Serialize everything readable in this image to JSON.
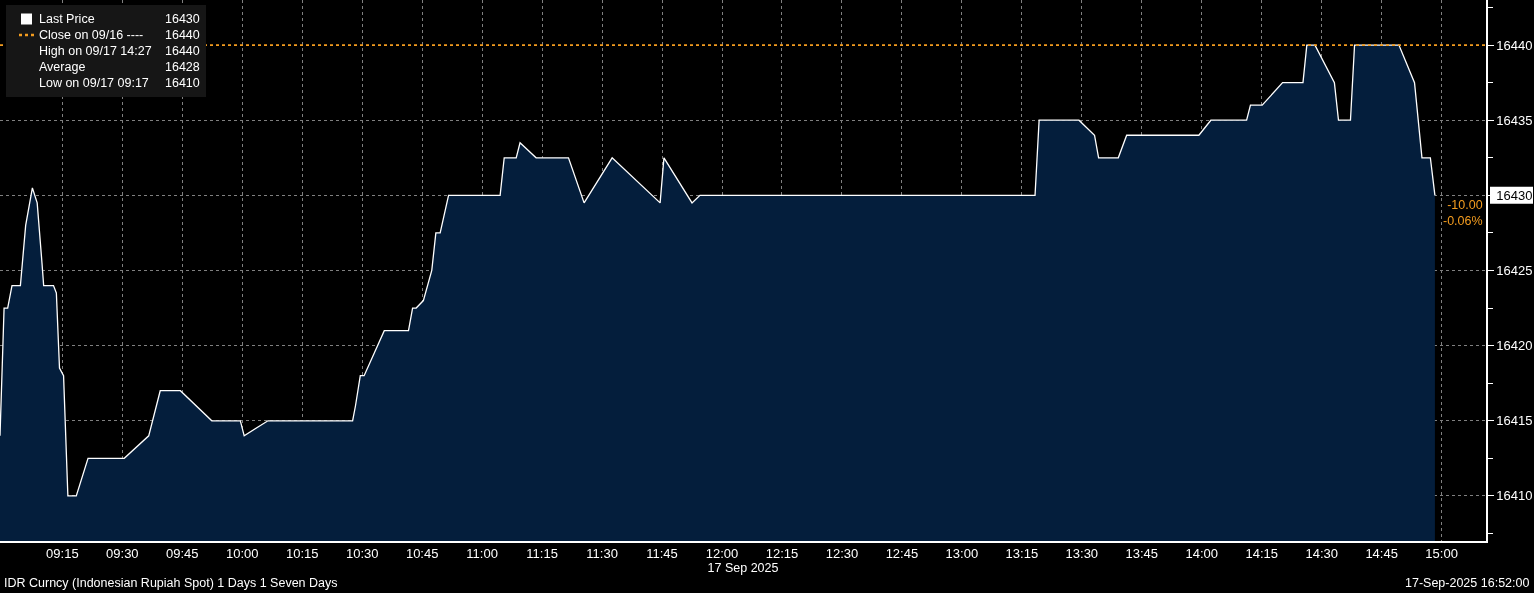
{
  "chart_data": {
    "type": "area",
    "xlabel": "17 Sep 2025",
    "series": [
      {
        "name": "Last Price",
        "color": "#ffffff",
        "x": [
          8.99,
          9.007,
          9.022,
          9.04,
          9.075,
          9.097,
          9.125,
          9.145,
          9.165,
          9.172,
          9.213,
          9.225,
          9.238,
          9.255,
          9.273,
          9.308,
          9.357,
          9.508,
          9.61,
          9.658,
          9.742,
          9.873,
          9.992,
          10.008,
          10.107,
          10.46,
          10.472,
          10.492,
          10.508,
          10.592,
          10.693,
          10.71,
          10.725,
          10.755,
          10.79,
          10.807,
          10.825,
          10.86,
          11.075,
          11.092,
          11.142,
          11.158,
          11.225,
          11.36,
          11.425,
          11.542,
          11.742,
          11.758,
          11.875,
          11.908,
          13.305,
          13.322,
          13.488,
          13.553,
          13.57,
          13.652,
          13.687,
          13.988,
          14.038,
          14.187,
          14.203,
          14.252,
          14.337,
          14.422,
          14.438,
          14.472,
          14.553,
          14.57,
          14.62,
          14.637,
          14.822,
          14.887,
          14.918,
          14.953,
          14.972
        ],
        "values": [
          16414,
          16422.5,
          16422.5,
          16424,
          16424,
          16428,
          16430.5,
          16429.5,
          16425.5,
          16424,
          16424,
          16423.5,
          16418.5,
          16418,
          16410,
          16410,
          16412.5,
          16412.5,
          16414,
          16417,
          16417,
          16415,
          16415,
          16414,
          16415,
          16415,
          16416,
          16418,
          16418,
          16421,
          16421,
          16422.5,
          16422.5,
          16423,
          16425,
          16427.5,
          16427.5,
          16430,
          16430,
          16432.5,
          16432.5,
          16433.5,
          16432.5,
          16432.5,
          16429.5,
          16432.5,
          16429.5,
          16432.5,
          16429.5,
          16430,
          16430,
          16435,
          16435,
          16434,
          16432.5,
          16432.5,
          16434,
          16434,
          16435,
          16435,
          16436,
          16436,
          16437.5,
          16437.5,
          16440,
          16440,
          16437.5,
          16435,
          16435,
          16440,
          16440,
          16437.5,
          16432.5,
          16432.5,
          16430
        ]
      }
    ],
    "xlim": [
      8.99,
      15.185
    ],
    "xticks": [
      {
        "value": 9.25,
        "label": "09:15"
      },
      {
        "value": 9.5,
        "label": "09:30"
      },
      {
        "value": 9.75,
        "label": "09:45"
      },
      {
        "value": 10.0,
        "label": "10:00"
      },
      {
        "value": 10.25,
        "label": "10:15"
      },
      {
        "value": 10.5,
        "label": "10:30"
      },
      {
        "value": 10.75,
        "label": "10:45"
      },
      {
        "value": 11.0,
        "label": "11:00"
      },
      {
        "value": 11.25,
        "label": "11:15"
      },
      {
        "value": 11.5,
        "label": "11:30"
      },
      {
        "value": 11.75,
        "label": "11:45"
      },
      {
        "value": 12.0,
        "label": "12:00"
      },
      {
        "value": 12.25,
        "label": "12:15"
      },
      {
        "value": 12.5,
        "label": "12:30"
      },
      {
        "value": 12.75,
        "label": "12:45"
      },
      {
        "value": 13.0,
        "label": "13:00"
      },
      {
        "value": 13.25,
        "label": "13:15"
      },
      {
        "value": 13.5,
        "label": "13:30"
      },
      {
        "value": 13.75,
        "label": "13:45"
      },
      {
        "value": 14.0,
        "label": "14:00"
      },
      {
        "value": 14.25,
        "label": "14:15"
      },
      {
        "value": 14.5,
        "label": "14:30"
      },
      {
        "value": 14.75,
        "label": "14:45"
      },
      {
        "value": 15.0,
        "label": "15:00"
      }
    ],
    "ylim": [
      16407,
      16443
    ],
    "yticks": [
      {
        "value": 16407.5,
        "label": null
      },
      16410,
      {
        "value": 16412.5,
        "label": null
      },
      16415,
      {
        "value": 16417.5,
        "label": null
      },
      16420,
      {
        "value": 16422.5,
        "label": null
      },
      16425,
      {
        "value": 16427.5,
        "label": null
      },
      16430,
      {
        "value": 16432.5,
        "label": null
      },
      16435,
      {
        "value": 16437.5,
        "label": null
      },
      16440,
      {
        "value": 16442.5,
        "label": null
      }
    ],
    "ref_lines": [
      {
        "axis": "y",
        "value": 16440,
        "label": "Close on 09/16 ----",
        "color": "#f39c1f",
        "line_style": "dotted"
      }
    ],
    "annotations": [
      "16430",
      "16440",
      "High on 09/17 14:27",
      "16440",
      "Average",
      "16428",
      "Low on 09/17 09:17",
      "16410",
      {
        "text": "-10.00\n-0.06%",
        "x": 14.972,
        "y": 16430
      },
      "IDR Curncy (Indonesian Rupiah Spot) 1 Days 1 Seven Days",
      "17-Sep-2025 16:52:00"
    ],
    "grid": true,
    "legend": "top left"
  }
}
